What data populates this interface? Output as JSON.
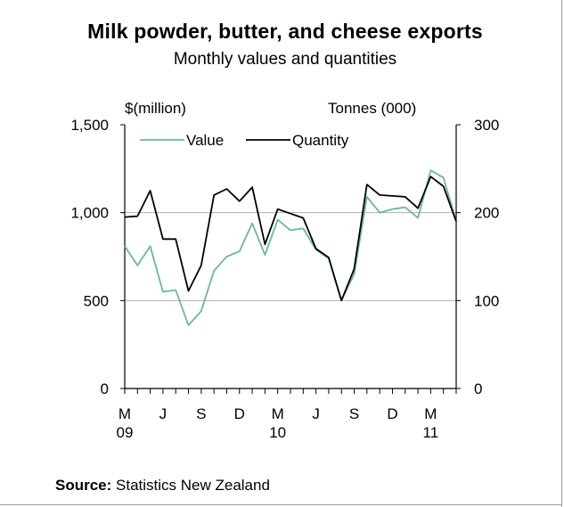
{
  "chart_data": {
    "type": "line",
    "title": "Milk powder, butter, and cheese exports",
    "subtitle": "Monthly values and quantities",
    "y_left_label": "$(million)",
    "y_right_label": "Tonnes (000)",
    "y_left_ticks": [
      "1,500",
      "1,000",
      "500",
      "0"
    ],
    "y_right_ticks": [
      "300",
      "200",
      "100",
      "0"
    ],
    "ylim_left": [
      0,
      1500
    ],
    "ylim_right": [
      0,
      300
    ],
    "x_tick_labels": [
      {
        "index": 0,
        "month": "M",
        "year": "09"
      },
      {
        "index": 3,
        "month": "J",
        "year": ""
      },
      {
        "index": 6,
        "month": "S",
        "year": ""
      },
      {
        "index": 9,
        "month": "D",
        "year": ""
      },
      {
        "index": 12,
        "month": "M",
        "year": "10"
      },
      {
        "index": 15,
        "month": "J",
        "year": ""
      },
      {
        "index": 18,
        "month": "S",
        "year": ""
      },
      {
        "index": 21,
        "month": "D",
        "year": ""
      },
      {
        "index": 24,
        "month": "M",
        "year": "11"
      }
    ],
    "gridlines": [
      500,
      1000
    ],
    "legend_position": "top-left",
    "series": [
      {
        "name": "Value",
        "axis": "left",
        "color": "#6fb3a8",
        "values": [
          810,
          700,
          810,
          550,
          560,
          360,
          440,
          670,
          750,
          780,
          940,
          760,
          960,
          900,
          910,
          790,
          740,
          500,
          650,
          1090,
          1000,
          1020,
          1030,
          970,
          1240,
          1200,
          950
        ]
      },
      {
        "name": "Quantity",
        "axis": "right",
        "color": "#000000",
        "values": [
          195,
          196,
          225,
          170,
          170,
          111,
          140,
          220,
          227,
          213,
          229,
          164,
          204,
          199,
          194,
          159,
          149,
          100,
          136,
          232,
          220,
          219,
          218,
          205,
          241,
          230,
          190
        ]
      }
    ]
  },
  "source": {
    "prefix": "Source:",
    "name": " Statistics New Zealand"
  }
}
